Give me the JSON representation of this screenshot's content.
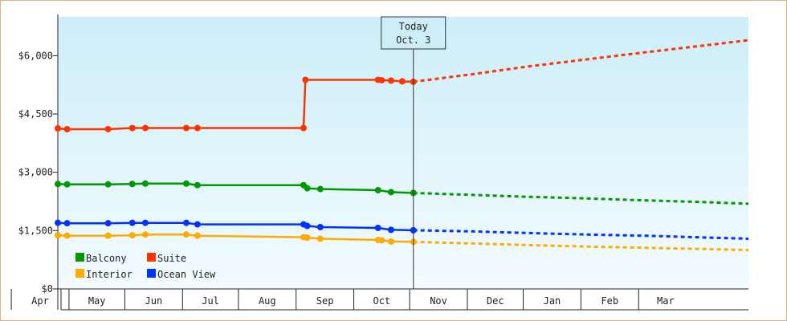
{
  "chart_data": {
    "type": "line",
    "title": "",
    "xlabel": "",
    "ylabel": "",
    "ylim": [
      0,
      7000
    ],
    "y_ticks": [
      "$0",
      "$1,500",
      "$3,000",
      "$4,500",
      "$6,000"
    ],
    "y_tick_values": [
      0,
      1500,
      3000,
      4500,
      6000
    ],
    "months": [
      "Apr",
      "May",
      "Jun",
      "Jul",
      "Aug",
      "Sep",
      "Oct",
      "Nov",
      "Dec",
      "Jan",
      "Feb",
      "Mar"
    ],
    "today": {
      "line1": "Today",
      "line2": "Oct. 3",
      "date": "2023-10-03"
    },
    "x_range": [
      "2023-03-26",
      "2024-03-31"
    ],
    "legend": {
      "placement": "bottom-left"
    },
    "grid": false,
    "series": [
      {
        "name": "Suite",
        "color": "#ff3300",
        "history": [
          [
            "2023-03-26",
            4130
          ],
          [
            "2023-03-31",
            4110
          ],
          [
            "2023-04-22",
            4110
          ],
          [
            "2023-05-05",
            4140
          ],
          [
            "2023-05-12",
            4140
          ],
          [
            "2023-06-03",
            4140
          ],
          [
            "2023-06-09",
            4140
          ],
          [
            "2023-08-05",
            4140
          ],
          [
            "2023-08-06",
            5380
          ],
          [
            "2023-09-14",
            5380
          ],
          [
            "2023-09-16",
            5370
          ],
          [
            "2023-09-21",
            5360
          ],
          [
            "2023-09-27",
            5340
          ],
          [
            "2023-10-03",
            5330
          ]
        ],
        "forecast": [
          [
            "2023-10-03",
            5330
          ],
          [
            "2023-11-03",
            5520
          ],
          [
            "2023-12-03",
            5720
          ],
          [
            "2024-01-03",
            5900
          ],
          [
            "2024-02-03",
            6080
          ],
          [
            "2024-03-03",
            6240
          ],
          [
            "2024-03-31",
            6400
          ]
        ]
      },
      {
        "name": "Balcony",
        "color": "#009900",
        "history": [
          [
            "2023-03-26",
            2700
          ],
          [
            "2023-03-31",
            2690
          ],
          [
            "2023-04-22",
            2690
          ],
          [
            "2023-05-05",
            2700
          ],
          [
            "2023-05-12",
            2710
          ],
          [
            "2023-06-03",
            2710
          ],
          [
            "2023-06-09",
            2670
          ],
          [
            "2023-08-05",
            2670
          ],
          [
            "2023-08-07",
            2590
          ],
          [
            "2023-08-14",
            2570
          ],
          [
            "2023-09-14",
            2540
          ],
          [
            "2023-09-21",
            2490
          ],
          [
            "2023-10-03",
            2470
          ]
        ],
        "forecast": [
          [
            "2023-10-03",
            2470
          ],
          [
            "2023-11-03",
            2420
          ],
          [
            "2023-12-03",
            2370
          ],
          [
            "2024-01-03",
            2330
          ],
          [
            "2024-02-03",
            2280
          ],
          [
            "2024-03-03",
            2240
          ],
          [
            "2024-03-31",
            2190
          ]
        ]
      },
      {
        "name": "Ocean View",
        "color": "#0033ff",
        "history": [
          [
            "2023-03-26",
            1700
          ],
          [
            "2023-03-31",
            1690
          ],
          [
            "2023-04-22",
            1690
          ],
          [
            "2023-05-05",
            1700
          ],
          [
            "2023-05-12",
            1700
          ],
          [
            "2023-06-03",
            1700
          ],
          [
            "2023-06-09",
            1660
          ],
          [
            "2023-08-05",
            1660
          ],
          [
            "2023-08-07",
            1620
          ],
          [
            "2023-08-14",
            1590
          ],
          [
            "2023-09-14",
            1570
          ],
          [
            "2023-09-21",
            1520
          ],
          [
            "2023-10-03",
            1510
          ]
        ],
        "forecast": [
          [
            "2023-10-03",
            1510
          ],
          [
            "2023-11-03",
            1480
          ],
          [
            "2023-12-03",
            1440
          ],
          [
            "2024-01-03",
            1400
          ],
          [
            "2024-02-03",
            1370
          ],
          [
            "2024-03-03",
            1330
          ],
          [
            "2024-03-31",
            1290
          ]
        ]
      },
      {
        "name": "Interior",
        "color": "#ffaa00",
        "history": [
          [
            "2023-03-26",
            1380
          ],
          [
            "2023-03-31",
            1370
          ],
          [
            "2023-04-22",
            1370
          ],
          [
            "2023-05-05",
            1380
          ],
          [
            "2023-05-12",
            1400
          ],
          [
            "2023-06-03",
            1400
          ],
          [
            "2023-06-09",
            1370
          ],
          [
            "2023-08-05",
            1330
          ],
          [
            "2023-08-07",
            1320
          ],
          [
            "2023-08-14",
            1290
          ],
          [
            "2023-09-14",
            1260
          ],
          [
            "2023-09-16",
            1250
          ],
          [
            "2023-09-21",
            1220
          ],
          [
            "2023-10-03",
            1210
          ]
        ],
        "forecast": [
          [
            "2023-10-03",
            1210
          ],
          [
            "2023-11-03",
            1170
          ],
          [
            "2023-12-03",
            1130
          ],
          [
            "2024-01-03",
            1090
          ],
          [
            "2024-02-03",
            1060
          ],
          [
            "2024-03-03",
            1030
          ],
          [
            "2024-03-31",
            1000
          ]
        ]
      }
    ]
  },
  "legend_items": [
    {
      "label": "Balcony",
      "color": "#009900"
    },
    {
      "label": "Suite",
      "color": "#ff3300"
    },
    {
      "label": "Interior",
      "color": "#ffaa00"
    },
    {
      "label": "Ocean View",
      "color": "#0033ff"
    }
  ],
  "colors": {
    "plot_top": "#cdeef9",
    "plot_bottom": "#f3fbfe",
    "border": "#e4b27a"
  }
}
